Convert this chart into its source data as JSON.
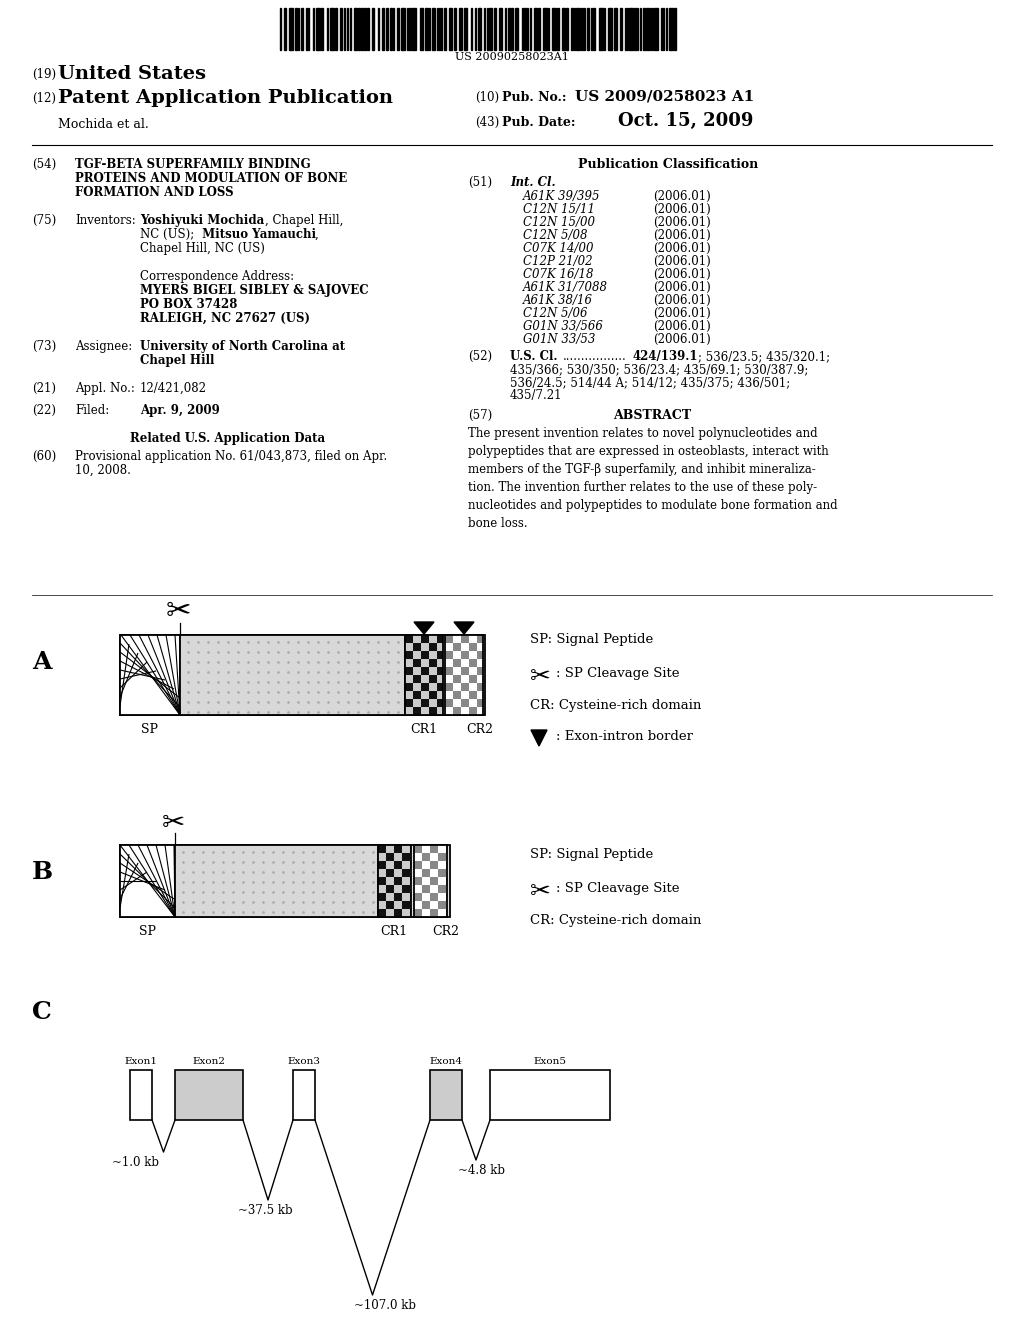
{
  "bg_color": "#ffffff",
  "barcode_text": "US 20090258023A1",
  "int_cl": [
    [
      "A61K 39/395",
      "(2006.01)"
    ],
    [
      "C12N 15/11",
      "(2006.01)"
    ],
    [
      "C12N 15/00",
      "(2006.01)"
    ],
    [
      "C12N 5/08",
      "(2006.01)"
    ],
    [
      "C07K 14/00",
      "(2006.01)"
    ],
    [
      "C12P 21/02",
      "(2006.01)"
    ],
    [
      "C07K 16/18",
      "(2006.01)"
    ],
    [
      "A61K 31/7088",
      "(2006.01)"
    ],
    [
      "A61K 38/16",
      "(2006.01)"
    ],
    [
      "C12N 5/06",
      "(2006.01)"
    ],
    [
      "G01N 33/566",
      "(2006.01)"
    ],
    [
      "G01N 33/53",
      "(2006.01)"
    ]
  ]
}
